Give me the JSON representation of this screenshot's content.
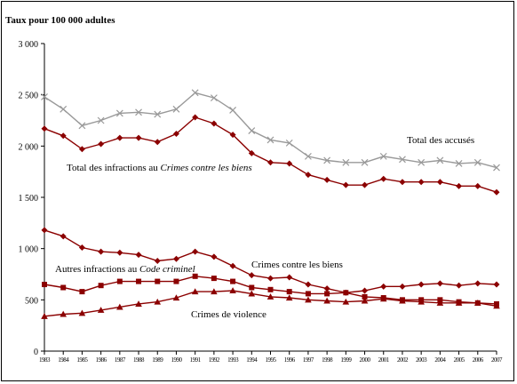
{
  "chart_data": {
    "type": "line",
    "title": "",
    "ylabel": "Taux pour 100 000 adultes",
    "xlabel": "",
    "ylim": [
      0,
      3000
    ],
    "yticks": [
      0,
      500,
      1000,
      1500,
      2000,
      2500,
      3000
    ],
    "ytick_labels": [
      "0",
      "500",
      "1 000",
      "1 500",
      "2 000",
      "2 500",
      "3 000"
    ],
    "x": [
      "1983",
      "1984",
      "1985",
      "1986",
      "1987",
      "1988",
      "1989",
      "1990",
      "1991",
      "1992",
      "1993",
      "1994",
      "1995",
      "1996",
      "1997",
      "1998",
      "1999",
      "2000",
      "2001",
      "2002",
      "2003",
      "2004",
      "2005",
      "2006",
      "2007"
    ],
    "grid": false,
    "legend": "none",
    "series": [
      {
        "name": "Total des accusés",
        "marker": "x",
        "color": "#999999",
        "values": [
          2480,
          2360,
          2200,
          2250,
          2320,
          2330,
          2310,
          2360,
          2520,
          2470,
          2350,
          2150,
          2060,
          2030,
          1900,
          1860,
          1840,
          1840,
          1900,
          1870,
          1840,
          1860,
          1830,
          1840,
          1790
        ]
      },
      {
        "name": "Total des infractions au Crimes contre les biens",
        "marker": "diamond",
        "color": "#8b0000",
        "values": [
          2170,
          2100,
          1970,
          2020,
          2080,
          2080,
          2040,
          2120,
          2280,
          2220,
          2110,
          1930,
          1840,
          1830,
          1720,
          1670,
          1620,
          1620,
          1680,
          1650,
          1650,
          1650,
          1610,
          1610,
          1550
        ]
      },
      {
        "name": "Crimes contre les biens",
        "marker": "diamond",
        "color": "#8b0000",
        "values": [
          1180,
          1120,
          1010,
          970,
          960,
          940,
          880,
          900,
          970,
          920,
          830,
          740,
          710,
          720,
          650,
          610,
          570,
          590,
          630,
          630,
          650,
          660,
          640,
          660,
          650
        ]
      },
      {
        "name": "Autres infractions au Code criminel",
        "marker": "square",
        "color": "#8b0000",
        "values": [
          650,
          620,
          580,
          640,
          680,
          680,
          680,
          680,
          730,
          710,
          680,
          620,
          600,
          580,
          560,
          560,
          570,
          530,
          520,
          500,
          500,
          500,
          480,
          470,
          460
        ]
      },
      {
        "name": "Crimes de violence",
        "marker": "triangle",
        "color": "#8b0000",
        "values": [
          340,
          360,
          370,
          400,
          430,
          460,
          480,
          520,
          580,
          580,
          590,
          560,
          530,
          520,
          500,
          490,
          480,
          490,
          510,
          490,
          480,
          470,
          470,
          470,
          440
        ]
      }
    ],
    "annotations": [
      {
        "text": "Total des accusés",
        "series": 0
      },
      {
        "text_parts": [
          "Total des infractions au ",
          "Crimes contre les biens"
        ],
        "series": 1
      },
      {
        "text": "Crimes contre les biens",
        "series": 2
      },
      {
        "text_parts": [
          "Autres infractions au ",
          "Code criminel"
        ],
        "series": 3
      },
      {
        "text": "Crimes de violence",
        "series": 4
      }
    ]
  }
}
